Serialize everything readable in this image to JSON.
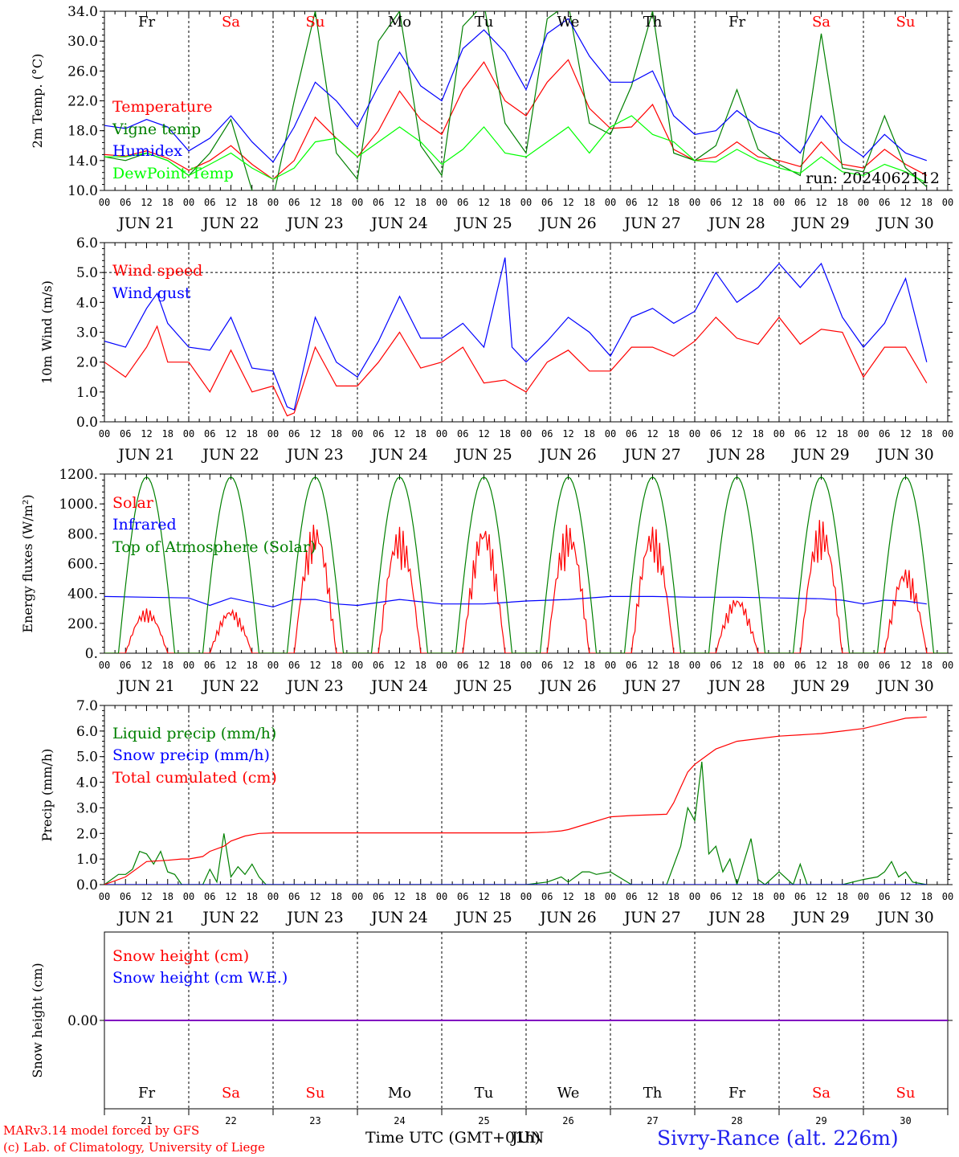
{
  "chart_data": [
    {
      "type": "line",
      "ylabel": "2m Temp. (°C)",
      "ylim": [
        10,
        34
      ],
      "yticks": [
        "10.0",
        "14.0",
        "18.0",
        "22.0",
        "26.0",
        "30.0",
        "34.0"
      ],
      "run_label": "run: 2024062112",
      "weekdays": [
        "Fr",
        "Sa",
        "Su",
        "Mo",
        "Tu",
        "We",
        "Th",
        "Fr",
        "Sa",
        "Su"
      ],
      "series": [
        {
          "name": "Temperature",
          "color": "#ff0000",
          "x": [
            0,
            6,
            12,
            18,
            24,
            30,
            36,
            42,
            48,
            54,
            60,
            66,
            72,
            78,
            84,
            90,
            96,
            102,
            108,
            114,
            120,
            126,
            132,
            138,
            144,
            150,
            156,
            162,
            168,
            174,
            180,
            186,
            192,
            198,
            204,
            210,
            216,
            222,
            228,
            234
          ],
          "values": [
            14.8,
            14.6,
            15.3,
            14.3,
            12.7,
            14.0,
            16.0,
            13.5,
            11.5,
            14.0,
            19.8,
            17.0,
            14.5,
            18.0,
            23.3,
            19.5,
            17.5,
            23.5,
            27.2,
            22.0,
            20.0,
            24.5,
            27.5,
            21.0,
            18.3,
            18.5,
            21.5,
            15.5,
            14.0,
            14.5,
            16.5,
            14.5,
            14.0,
            13.2,
            16.5,
            13.5,
            13.0,
            15.5,
            13.5,
            12.0
          ]
        },
        {
          "name": "Vigne temp",
          "color": "#008000",
          "x": [
            0,
            6,
            12,
            18,
            24,
            30,
            36,
            42,
            48,
            54,
            60,
            66,
            72,
            78,
            84,
            90,
            96,
            102,
            108,
            114,
            120,
            126,
            132,
            138,
            144,
            150,
            156,
            162,
            168,
            174,
            180,
            186,
            192,
            198,
            204,
            210,
            216,
            222,
            228,
            234
          ],
          "values": [
            14.5,
            14.0,
            15.0,
            14.0,
            12.0,
            15.0,
            19.5,
            10.0,
            9.0,
            22.0,
            34.0,
            15.0,
            11.5,
            30.0,
            34.0,
            16.0,
            12.0,
            32.0,
            35.0,
            19.0,
            15.0,
            33.0,
            35.0,
            19.0,
            17.5,
            24.0,
            34.0,
            15.0,
            14.0,
            16.0,
            23.5,
            15.5,
            13.5,
            12.0,
            31.0,
            13.0,
            12.5,
            20.0,
            13.0,
            10.5
          ]
        },
        {
          "name": "Humidex",
          "color": "#0000ff",
          "x": [
            0,
            6,
            12,
            18,
            24,
            30,
            36,
            42,
            48,
            54,
            60,
            66,
            72,
            78,
            84,
            90,
            96,
            102,
            108,
            114,
            120,
            126,
            132,
            138,
            144,
            150,
            156,
            162,
            168,
            174,
            180,
            186,
            192,
            198,
            204,
            210,
            216,
            222,
            228,
            234
          ],
          "values": [
            18.7,
            18.3,
            19.5,
            18.5,
            15.3,
            17.0,
            20.0,
            16.5,
            13.8,
            18.5,
            24.5,
            22.0,
            18.5,
            24.0,
            28.5,
            24.0,
            22.0,
            29.0,
            31.5,
            28.5,
            23.5,
            31.0,
            33.0,
            28.0,
            24.5,
            24.5,
            26.0,
            20.0,
            17.5,
            18.0,
            20.7,
            18.5,
            17.5,
            15.0,
            20.0,
            16.5,
            14.5,
            17.5,
            15.0,
            14.0
          ]
        },
        {
          "name": "DewPoint Temp",
          "color": "#00ff00",
          "x": [
            0,
            6,
            12,
            18,
            24,
            30,
            36,
            42,
            48,
            54,
            60,
            66,
            72,
            78,
            84,
            90,
            96,
            102,
            108,
            114,
            120,
            126,
            132,
            138,
            144,
            150,
            156,
            162,
            168,
            174,
            180,
            186,
            192,
            198,
            204,
            210,
            216,
            222,
            228,
            234
          ],
          "values": [
            14.5,
            14.5,
            15.0,
            14.0,
            12.0,
            13.5,
            15.0,
            13.0,
            11.5,
            13.0,
            16.5,
            17.0,
            14.5,
            16.5,
            18.5,
            16.5,
            13.5,
            15.5,
            18.5,
            15.0,
            14.5,
            16.5,
            18.5,
            15.0,
            18.5,
            20.0,
            17.5,
            16.5,
            14.0,
            13.8,
            15.5,
            14.0,
            13.0,
            12.3,
            14.5,
            12.5,
            12.0,
            13.5,
            12.5,
            11.0
          ]
        }
      ]
    },
    {
      "type": "line",
      "ylabel": "10m Wind (m/s)",
      "ylim": [
        0,
        6
      ],
      "yticks": [
        "0.0",
        "1.0",
        "2.0",
        "3.0",
        "4.0",
        "5.0",
        "6.0"
      ],
      "reference_line": 5.0,
      "series": [
        {
          "name": "Wind speed",
          "color": "#ff0000",
          "x": [
            0,
            6,
            12,
            15,
            18,
            24,
            30,
            36,
            42,
            48,
            52,
            54,
            60,
            66,
            72,
            78,
            84,
            90,
            96,
            102,
            108,
            114,
            120,
            126,
            132,
            138,
            144,
            150,
            156,
            162,
            168,
            174,
            180,
            186,
            192,
            198,
            204,
            210,
            216,
            222,
            228,
            234
          ],
          "values": [
            2.0,
            1.5,
            2.5,
            3.2,
            2.0,
            2.0,
            1.0,
            2.4,
            1.0,
            1.2,
            0.2,
            0.3,
            2.5,
            1.2,
            1.2,
            2.0,
            3.0,
            1.8,
            2.0,
            2.5,
            1.3,
            1.4,
            1.0,
            2.0,
            2.4,
            1.7,
            1.7,
            2.5,
            2.5,
            2.2,
            2.7,
            3.5,
            2.8,
            2.6,
            3.5,
            2.6,
            3.1,
            3.0,
            1.5,
            2.5,
            2.5,
            1.3
          ]
        },
        {
          "name": "Wind gust",
          "color": "#0000ff",
          "x": [
            0,
            6,
            12,
            15,
            18,
            24,
            30,
            36,
            42,
            48,
            52,
            54,
            60,
            66,
            72,
            78,
            84,
            90,
            96,
            102,
            108,
            114,
            116,
            120,
            126,
            132,
            138,
            144,
            150,
            156,
            162,
            168,
            174,
            180,
            186,
            192,
            198,
            204,
            210,
            216,
            222,
            228,
            234
          ],
          "values": [
            2.7,
            2.5,
            3.8,
            4.3,
            3.3,
            2.5,
            2.4,
            3.5,
            1.8,
            1.7,
            0.5,
            0.4,
            3.5,
            2.0,
            1.5,
            2.7,
            4.2,
            2.8,
            2.8,
            3.3,
            2.5,
            5.5,
            2.5,
            2.0,
            2.7,
            3.5,
            3.0,
            2.2,
            3.5,
            3.8,
            3.3,
            3.7,
            5.0,
            4.0,
            4.5,
            5.3,
            4.5,
            5.3,
            3.5,
            2.5,
            3.3,
            4.8,
            2.0
          ]
        }
      ]
    },
    {
      "type": "line",
      "ylabel": "Energy fluxes (W/m²)",
      "ylim": [
        0,
        1200
      ],
      "yticks": [
        "0.",
        "200.",
        "400.",
        "600.",
        "800.",
        "1000.",
        "1200."
      ],
      "series": [
        {
          "name": "Solar",
          "color": "#ff0000",
          "daily_peak": [
            300,
            300,
            880,
            850,
            880,
            870,
            860,
            380,
            900,
            580
          ]
        },
        {
          "name": "Infrared",
          "color": "#0000ff",
          "x": [
            0,
            12,
            24,
            30,
            36,
            42,
            48,
            54,
            60,
            66,
            72,
            84,
            96,
            108,
            120,
            132,
            144,
            156,
            168,
            180,
            192,
            204,
            210,
            216,
            222,
            228,
            234
          ],
          "values": [
            380,
            375,
            370,
            320,
            370,
            340,
            310,
            360,
            360,
            330,
            320,
            360,
            330,
            330,
            350,
            360,
            380,
            380,
            375,
            375,
            370,
            365,
            355,
            330,
            355,
            350,
            330
          ]
        },
        {
          "name": "Top of Atmosphere (Solar)",
          "color": "#008000",
          "daily_peak": [
            1180,
            1180,
            1180,
            1180,
            1180,
            1180,
            1180,
            1180,
            1180,
            1180
          ]
        }
      ]
    },
    {
      "type": "line",
      "ylabel": "Precip (mm/h)",
      "ylim": [
        0,
        7
      ],
      "yticks": [
        "0.0",
        "1.0",
        "2.0",
        "3.0",
        "4.0",
        "5.0",
        "6.0",
        "7.0"
      ],
      "series": [
        {
          "name": "Liquid precip (mm/h)",
          "color": "#008000",
          "x": [
            0,
            4,
            6,
            8,
            10,
            12,
            14,
            16,
            18,
            20,
            22,
            24,
            28,
            30,
            32,
            34,
            36,
            38,
            40,
            42,
            44,
            46,
            48,
            120,
            126,
            130,
            132,
            136,
            138,
            140,
            144,
            150,
            160,
            164,
            166,
            168,
            170,
            172,
            174,
            176,
            178,
            180,
            184,
            186,
            188,
            192,
            196,
            198,
            200,
            204,
            210,
            216,
            220,
            222,
            224,
            226,
            228,
            230,
            234
          ],
          "values": [
            0,
            0.4,
            0.4,
            0.6,
            1.3,
            1.2,
            0.8,
            1.3,
            0.5,
            0.4,
            0,
            0,
            0,
            0.6,
            0.1,
            2.0,
            0.3,
            0.7,
            0.4,
            0.8,
            0.3,
            0,
            0,
            0,
            0.1,
            0.3,
            0.1,
            0.5,
            0.5,
            0.4,
            0.5,
            0,
            0,
            1.5,
            3.0,
            2.5,
            4.8,
            1.2,
            1.5,
            0.5,
            1.0,
            0,
            1.8,
            0.2,
            0,
            0.5,
            0,
            0.8,
            0,
            0,
            0,
            0.2,
            0.3,
            0.5,
            0.9,
            0.3,
            0.5,
            0.1,
            0
          ]
        },
        {
          "name": "Snow precip (mm/h)",
          "color": "#0000ff",
          "x": [
            0,
            234
          ],
          "values": [
            0,
            0
          ]
        },
        {
          "name": "Total cumulated (cm)",
          "color": "#ff0000",
          "x": [
            0,
            6,
            10,
            12,
            18,
            22,
            24,
            28,
            30,
            34,
            36,
            40,
            44,
            48,
            60,
            72,
            84,
            96,
            108,
            120,
            126,
            130,
            132,
            138,
            144,
            150,
            160,
            162,
            164,
            166,
            168,
            170,
            172,
            174,
            178,
            180,
            186,
            192,
            198,
            204,
            210,
            216,
            222,
            228,
            234
          ],
          "values": [
            0,
            0.3,
            0.7,
            0.9,
            0.95,
            1.0,
            1.0,
            1.1,
            1.3,
            1.5,
            1.7,
            1.9,
            2.0,
            2.02,
            2.02,
            2.02,
            2.02,
            2.02,
            2.02,
            2.02,
            2.05,
            2.1,
            2.15,
            2.4,
            2.65,
            2.7,
            2.75,
            3.2,
            3.8,
            4.4,
            4.7,
            4.9,
            5.1,
            5.3,
            5.5,
            5.6,
            5.7,
            5.8,
            5.85,
            5.9,
            6.0,
            6.1,
            6.3,
            6.5,
            6.55
          ]
        }
      ]
    },
    {
      "type": "line",
      "ylabel": "Snow height (cm)",
      "yticks": [
        "0.00"
      ],
      "series": [
        {
          "name": "Snow height (cm)",
          "color": "#ff0000",
          "x": [
            0,
            240
          ],
          "values": [
            0,
            0
          ]
        },
        {
          "name": "Snow height (cm W.E.)",
          "color": "#0000ff",
          "x": [
            0,
            240
          ],
          "values": [
            0,
            0
          ]
        }
      ],
      "weekdays": [
        "Fr",
        "Sa",
        "Su",
        "Mo",
        "Tu",
        "We",
        "Th",
        "Fr",
        "Sa",
        "Su"
      ],
      "day_numbers": [
        "21",
        "22",
        "23",
        "24",
        "25",
        "26",
        "27",
        "28",
        "29",
        "30"
      ]
    }
  ],
  "x_axis": {
    "hour_ticks": [
      "00",
      "06",
      "12",
      "18"
    ],
    "final_tick": "00",
    "dates": [
      "JUN 21",
      "JUN 22",
      "JUN 23",
      "JUN 24",
      "JUN 25",
      "JUN 26",
      "JUN 27",
      "JUN 28",
      "JUN 29",
      "JUN 30"
    ],
    "title": "Time UTC (GMT+01h)",
    "title_overlay": "JUN"
  },
  "footer": {
    "model": "MARv3.14 model forced by GFS",
    "copyright": "(c) Lab. of Climatology, University of Liege",
    "station": "Sivry-Rance (alt. 226m)"
  },
  "colors": {
    "red": "#ff0000",
    "blue": "#0000ff",
    "green": "#008000",
    "lime": "#00ff00",
    "weekend": "#ff0000",
    "weekday": "#000000"
  }
}
